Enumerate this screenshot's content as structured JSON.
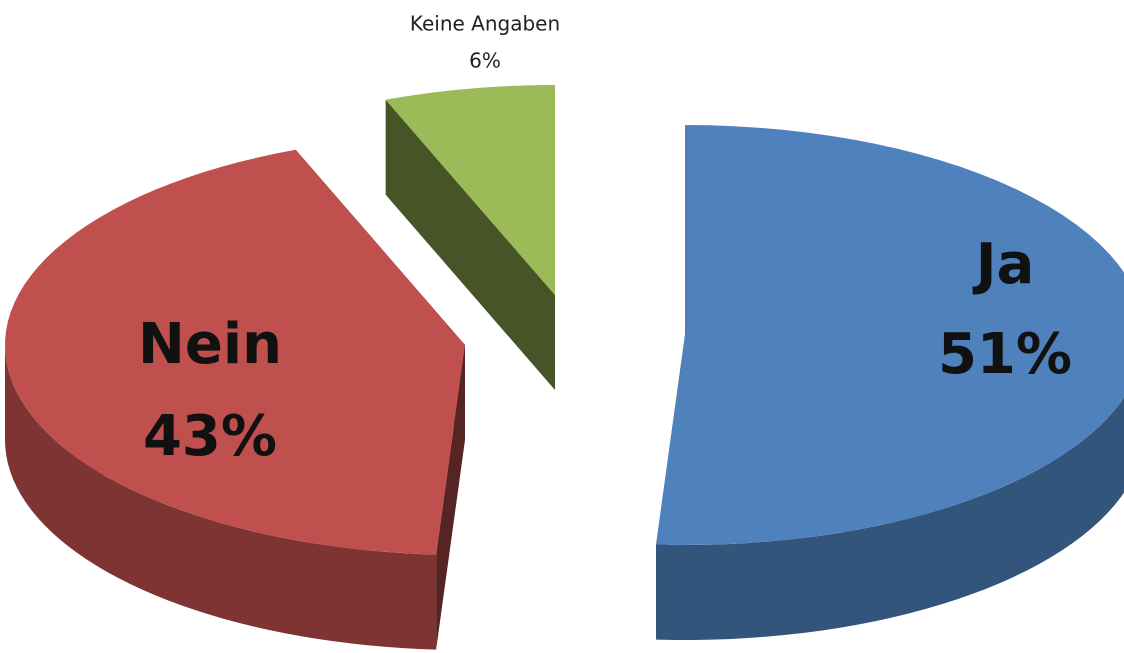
{
  "chart_data": {
    "type": "pie",
    "three_d": true,
    "explode": true,
    "categories": [
      "Ja",
      "Nein",
      "Keine Angaben"
    ],
    "values": [
      51,
      43,
      6
    ],
    "value_labels": [
      "51%",
      "43%",
      "6%"
    ],
    "colors": [
      "#4f81bd",
      "#c0504d",
      "#9bbb59"
    ]
  }
}
